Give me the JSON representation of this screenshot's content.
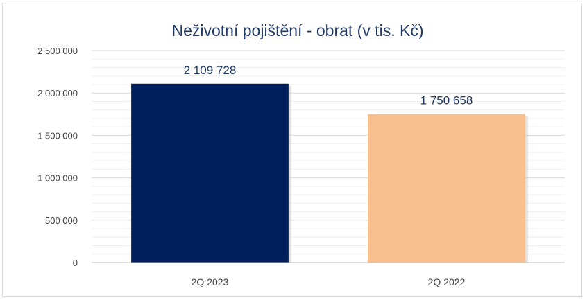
{
  "chart_data": {
    "type": "bar",
    "title": "Neživotní pojištění  - obrat (v tis. Kč)",
    "xlabel": "",
    "ylabel": "",
    "categories": [
      "2Q 2023",
      "2Q 2022"
    ],
    "values": [
      2109728,
      1750658
    ],
    "data_labels": [
      "2 109 728",
      "1 750 658"
    ],
    "bar_colors": [
      "#001f5b",
      "#f8c08f"
    ],
    "ylim": [
      0,
      2500000
    ],
    "yticks": [
      0,
      500000,
      1000000,
      1500000,
      2000000,
      2500000
    ],
    "ytick_labels": [
      "0",
      "500 000",
      "1 000 000",
      "1 500 000",
      "2 000 000",
      "2 500 000"
    ],
    "grid": true,
    "legend": "none"
  }
}
